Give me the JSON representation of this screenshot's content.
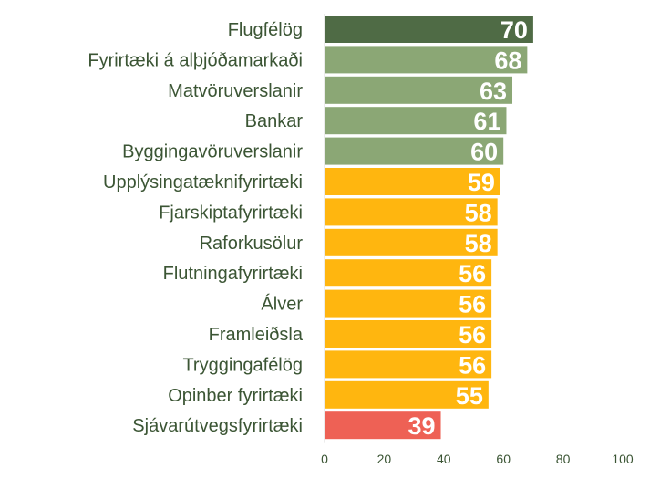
{
  "chart_data": {
    "type": "bar",
    "orientation": "horizontal",
    "categories": [
      "Flugfélög",
      "Fyrirtæki á alþjóðamarkaði",
      "Matvöruverslanir",
      "Bankar",
      "Byggingavöruverslanir",
      "Upplýsingatæknifyrirtæki",
      "Fjarskiptafyrirtæki",
      "Raforkusölur",
      "Flutningafyrirtæki",
      "Álver",
      "Framleiðsla",
      "Tryggingafélög",
      "Opinber fyrirtæki",
      "Sjávarútvegsfyrirtæki"
    ],
    "values": [
      70,
      68,
      63,
      61,
      60,
      59,
      58,
      58,
      56,
      56,
      56,
      56,
      55,
      39
    ],
    "value_labels": [
      "70",
      "68",
      "63",
      "61",
      "60",
      "59",
      "58",
      "58",
      "56",
      "56",
      "56",
      "56",
      "55",
      "39"
    ],
    "bar_colors": [
      "#4f6b45",
      "#8ba775",
      "#8ba775",
      "#8ba775",
      "#8ba775",
      "#ffb60f",
      "#ffb60f",
      "#ffb60f",
      "#ffb60f",
      "#ffb60f",
      "#ffb60f",
      "#ffb60f",
      "#ffb60f",
      "#ee6155"
    ],
    "xlim": [
      0,
      100
    ],
    "xticks": [
      0,
      20,
      40,
      60,
      80,
      100
    ],
    "xtick_labels": [
      "0",
      "20",
      "40",
      "60",
      "80",
      "100"
    ],
    "grid": false,
    "legend": "none",
    "title": "",
    "xlabel": "",
    "ylabel": ""
  }
}
